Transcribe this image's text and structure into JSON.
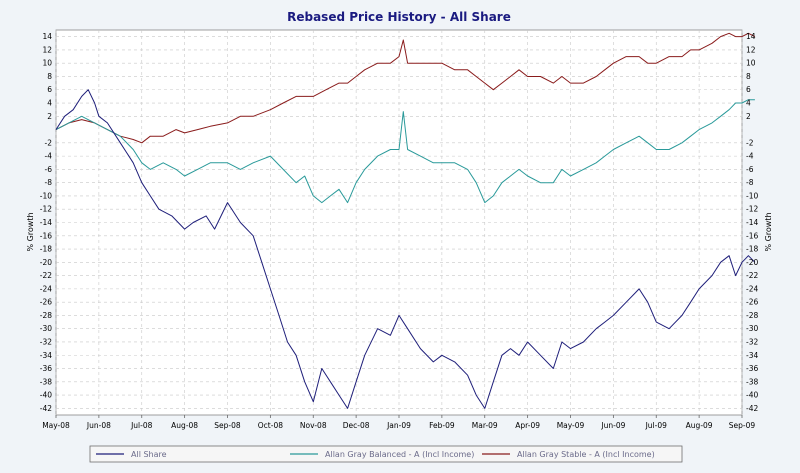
{
  "chart_data": {
    "type": "line",
    "title": "Rebased Price History - All Share",
    "ylabel": "% Growth",
    "ylabel_right": "% Growth",
    "ylim": [
      -43,
      15
    ],
    "yticks": [
      14,
      12,
      10,
      8,
      6,
      4,
      2,
      -2,
      -4,
      -6,
      -8,
      -10,
      -12,
      -14,
      -16,
      -18,
      -20,
      -22,
      -24,
      -26,
      -28,
      -30,
      -32,
      -34,
      -36,
      -38,
      -40,
      -42
    ],
    "xticks": [
      "May-08",
      "Jun-08",
      "Jul-08",
      "Aug-08",
      "Sep-08",
      "Oct-08",
      "Nov-08",
      "Dec-08",
      "Jan-09",
      "Feb-09",
      "Mar-09",
      "Apr-09",
      "May-09",
      "Jun-09",
      "Jul-09",
      "Aug-09",
      "Sep-09"
    ],
    "grid": true,
    "legend_position": "bottom",
    "series": [
      {
        "name": "All Share",
        "color": "#1f1f7a",
        "points": [
          [
            0,
            0
          ],
          [
            0.2,
            2
          ],
          [
            0.4,
            3
          ],
          [
            0.6,
            5
          ],
          [
            0.75,
            6
          ],
          [
            0.9,
            4
          ],
          [
            1.0,
            2
          ],
          [
            1.2,
            1
          ],
          [
            1.5,
            -2
          ],
          [
            1.8,
            -5
          ],
          [
            2.0,
            -8
          ],
          [
            2.2,
            -10
          ],
          [
            2.4,
            -12
          ],
          [
            2.7,
            -13
          ],
          [
            3.0,
            -15
          ],
          [
            3.2,
            -14
          ],
          [
            3.5,
            -13
          ],
          [
            3.7,
            -15
          ],
          [
            4.0,
            -11
          ],
          [
            4.3,
            -14
          ],
          [
            4.6,
            -16
          ],
          [
            4.8,
            -20
          ],
          [
            5.0,
            -24
          ],
          [
            5.2,
            -28
          ],
          [
            5.4,
            -32
          ],
          [
            5.6,
            -34
          ],
          [
            5.8,
            -38
          ],
          [
            6.0,
            -41
          ],
          [
            6.2,
            -36
          ],
          [
            6.4,
            -38
          ],
          [
            6.6,
            -40
          ],
          [
            6.8,
            -42
          ],
          [
            7.0,
            -38
          ],
          [
            7.2,
            -34
          ],
          [
            7.5,
            -30
          ],
          [
            7.8,
            -31
          ],
          [
            8.0,
            -28
          ],
          [
            8.2,
            -30
          ],
          [
            8.5,
            -33
          ],
          [
            8.8,
            -35
          ],
          [
            9.0,
            -34
          ],
          [
            9.3,
            -35
          ],
          [
            9.6,
            -37
          ],
          [
            9.8,
            -40
          ],
          [
            10.0,
            -42
          ],
          [
            10.2,
            -38
          ],
          [
            10.4,
            -34
          ],
          [
            10.6,
            -33
          ],
          [
            10.8,
            -34
          ],
          [
            11.0,
            -32
          ],
          [
            11.3,
            -34
          ],
          [
            11.6,
            -36
          ],
          [
            11.8,
            -32
          ],
          [
            12.0,
            -33
          ],
          [
            12.3,
            -32
          ],
          [
            12.6,
            -30
          ],
          [
            12.8,
            -29
          ],
          [
            13.0,
            -28
          ],
          [
            13.3,
            -26
          ],
          [
            13.6,
            -24
          ],
          [
            13.8,
            -26
          ],
          [
            14.0,
            -29
          ],
          [
            14.3,
            -30
          ],
          [
            14.6,
            -28
          ],
          [
            14.8,
            -26
          ],
          [
            15.0,
            -24
          ],
          [
            15.3,
            -22
          ],
          [
            15.5,
            -20
          ],
          [
            15.7,
            -19
          ],
          [
            15.85,
            -22
          ],
          [
            16.0,
            -20
          ],
          [
            16.15,
            -19
          ],
          [
            16.3,
            -20
          ]
        ]
      },
      {
        "name": "Allan Gray Balanced - A (Incl Income)",
        "color": "#2a9a9a",
        "points": [
          [
            0,
            0
          ],
          [
            0.3,
            1
          ],
          [
            0.6,
            2
          ],
          [
            0.9,
            1
          ],
          [
            1.2,
            0
          ],
          [
            1.5,
            -1
          ],
          [
            1.8,
            -3
          ],
          [
            2.0,
            -5
          ],
          [
            2.2,
            -6
          ],
          [
            2.5,
            -5
          ],
          [
            2.8,
            -6
          ],
          [
            3.0,
            -7
          ],
          [
            3.3,
            -6
          ],
          [
            3.6,
            -5
          ],
          [
            4.0,
            -5
          ],
          [
            4.3,
            -6
          ],
          [
            4.6,
            -5
          ],
          [
            5.0,
            -4
          ],
          [
            5.3,
            -6
          ],
          [
            5.6,
            -8
          ],
          [
            5.8,
            -7
          ],
          [
            6.0,
            -10
          ],
          [
            6.2,
            -11
          ],
          [
            6.4,
            -10
          ],
          [
            6.6,
            -9
          ],
          [
            6.8,
            -11
          ],
          [
            7.0,
            -8
          ],
          [
            7.2,
            -6
          ],
          [
            7.5,
            -4
          ],
          [
            7.8,
            -3
          ],
          [
            8.0,
            -3
          ],
          [
            8.1,
            2.7
          ],
          [
            8.2,
            -3
          ],
          [
            8.5,
            -4
          ],
          [
            8.8,
            -5
          ],
          [
            9.0,
            -5
          ],
          [
            9.3,
            -5
          ],
          [
            9.6,
            -6
          ],
          [
            9.8,
            -8
          ],
          [
            10.0,
            -11
          ],
          [
            10.2,
            -10
          ],
          [
            10.4,
            -8
          ],
          [
            10.6,
            -7
          ],
          [
            10.8,
            -6
          ],
          [
            11.0,
            -7
          ],
          [
            11.3,
            -8
          ],
          [
            11.6,
            -8
          ],
          [
            11.8,
            -6
          ],
          [
            12.0,
            -7
          ],
          [
            12.3,
            -6
          ],
          [
            12.6,
            -5
          ],
          [
            12.8,
            -4
          ],
          [
            13.0,
            -3
          ],
          [
            13.3,
            -2
          ],
          [
            13.6,
            -1
          ],
          [
            13.8,
            -2
          ],
          [
            14.0,
            -3
          ],
          [
            14.3,
            -3
          ],
          [
            14.6,
            -2
          ],
          [
            14.8,
            -1
          ],
          [
            15.0,
            0
          ],
          [
            15.3,
            1
          ],
          [
            15.5,
            2
          ],
          [
            15.7,
            3
          ],
          [
            15.85,
            4
          ],
          [
            16.0,
            4
          ],
          [
            16.15,
            4.5
          ],
          [
            16.3,
            4.5
          ]
        ]
      },
      {
        "name": "Allan Gray Stable - A (Incl Income)",
        "color": "#8a1c1c",
        "points": [
          [
            0,
            0
          ],
          [
            0.3,
            1
          ],
          [
            0.6,
            1.5
          ],
          [
            0.9,
            1
          ],
          [
            1.2,
            0
          ],
          [
            1.5,
            -1
          ],
          [
            1.8,
            -1.5
          ],
          [
            2.0,
            -2
          ],
          [
            2.2,
            -1
          ],
          [
            2.5,
            -1
          ],
          [
            2.8,
            0
          ],
          [
            3.0,
            -0.5
          ],
          [
            3.3,
            0
          ],
          [
            3.6,
            0.5
          ],
          [
            4.0,
            1
          ],
          [
            4.3,
            2
          ],
          [
            4.6,
            2
          ],
          [
            5.0,
            3
          ],
          [
            5.3,
            4
          ],
          [
            5.6,
            5
          ],
          [
            5.8,
            5
          ],
          [
            6.0,
            5
          ],
          [
            6.3,
            6
          ],
          [
            6.6,
            7
          ],
          [
            6.8,
            7
          ],
          [
            7.0,
            8
          ],
          [
            7.2,
            9
          ],
          [
            7.5,
            10
          ],
          [
            7.8,
            10
          ],
          [
            8.0,
            11
          ],
          [
            8.1,
            13.5
          ],
          [
            8.2,
            10
          ],
          [
            8.5,
            10
          ],
          [
            8.8,
            10
          ],
          [
            9.0,
            10
          ],
          [
            9.3,
            9
          ],
          [
            9.6,
            9
          ],
          [
            9.8,
            8
          ],
          [
            10.0,
            7
          ],
          [
            10.2,
            6
          ],
          [
            10.4,
            7
          ],
          [
            10.6,
            8
          ],
          [
            10.8,
            9
          ],
          [
            11.0,
            8
          ],
          [
            11.3,
            8
          ],
          [
            11.6,
            7
          ],
          [
            11.8,
            8
          ],
          [
            12.0,
            7
          ],
          [
            12.3,
            7
          ],
          [
            12.6,
            8
          ],
          [
            12.8,
            9
          ],
          [
            13.0,
            10
          ],
          [
            13.3,
            11
          ],
          [
            13.6,
            11
          ],
          [
            13.8,
            10
          ],
          [
            14.0,
            10
          ],
          [
            14.3,
            11
          ],
          [
            14.6,
            11
          ],
          [
            14.8,
            12
          ],
          [
            15.0,
            12
          ],
          [
            15.3,
            13
          ],
          [
            15.5,
            14
          ],
          [
            15.7,
            14.5
          ],
          [
            15.85,
            14
          ],
          [
            16.0,
            14
          ],
          [
            16.15,
            14.5
          ],
          [
            16.3,
            14
          ]
        ]
      }
    ]
  }
}
